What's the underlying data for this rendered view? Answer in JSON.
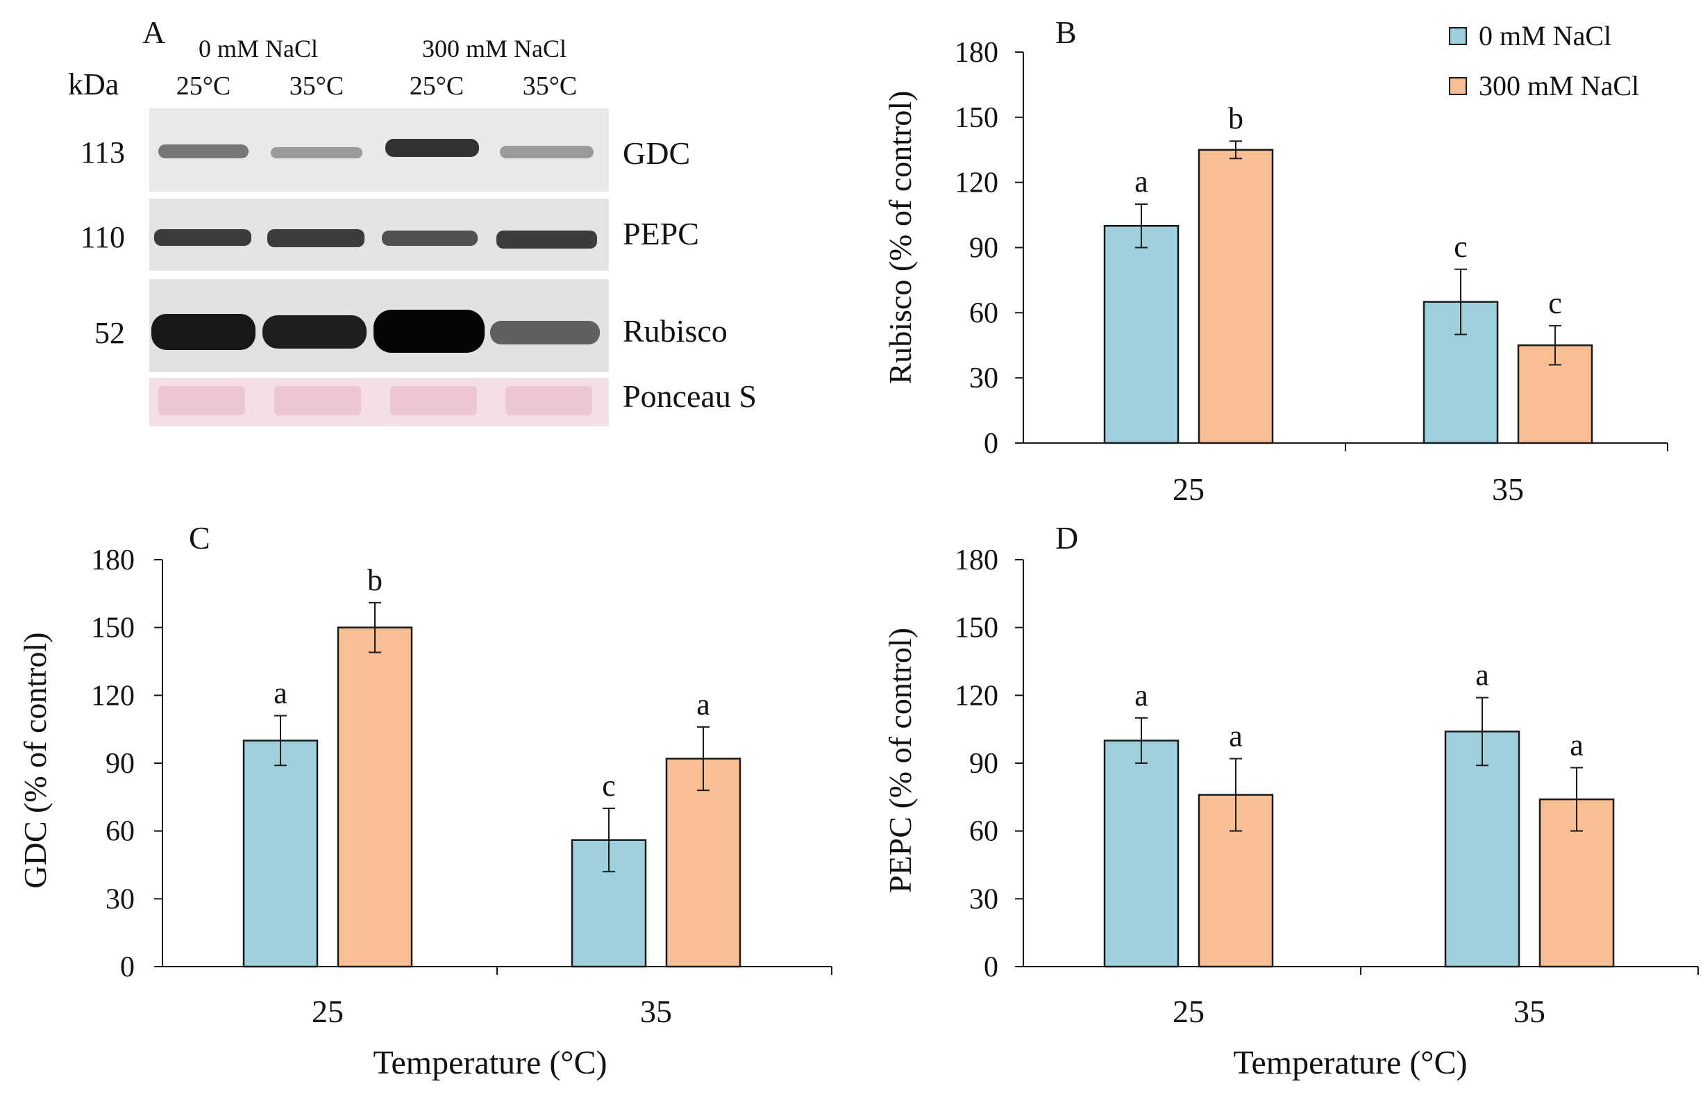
{
  "colors": {
    "c0": "#9ecfdd",
    "c300": "#f7bf93",
    "stroke": "#1a1a1a",
    "ponceau": "#f0c7d2"
  },
  "panelA": {
    "letter": "A",
    "groups": [
      "0 mM NaCl",
      "300 mM NaCl"
    ],
    "kda_label": "kDa",
    "lanes": [
      "25°C",
      "35°C",
      "25°C",
      "35°C"
    ],
    "rows": [
      {
        "kda": "113",
        "name": "GDC",
        "intensity": [
          0.55,
          0.4,
          0.85,
          0.4
        ]
      },
      {
        "kda": "110",
        "name": "PEPC",
        "intensity": [
          0.8,
          0.8,
          0.72,
          0.8
        ]
      },
      {
        "kda": "52",
        "name": "Rubisco",
        "intensity": [
          0.95,
          0.92,
          1.0,
          0.65
        ]
      },
      {
        "kda": "",
        "name": "Ponceau S",
        "intensity": [
          0.3,
          0.3,
          0.3,
          0.3
        ]
      }
    ]
  },
  "chart_data": [
    {
      "panel": "B",
      "type": "bar",
      "categories": [
        "25",
        "35"
      ],
      "ylabel": "Rubisco (% of control)",
      "xlabel": "",
      "ylim": [
        0,
        180
      ],
      "yticks": [
        "0",
        "30",
        "60",
        "90",
        "120",
        "150",
        "180"
      ],
      "legend": {
        "position": "top-right"
      },
      "series": [
        {
          "name": "0 mM NaCl",
          "values": [
            100,
            65
          ],
          "errors": [
            10,
            15
          ],
          "letters": [
            "a",
            "c"
          ]
        },
        {
          "name": "300 mM NaCl",
          "values": [
            135,
            45
          ],
          "errors": [
            4,
            9
          ],
          "letters": [
            "b",
            "c"
          ]
        }
      ]
    },
    {
      "panel": "C",
      "type": "bar",
      "categories": [
        "25",
        "35"
      ],
      "ylabel": "GDC (% of control)",
      "xlabel": "Temperature (°C)",
      "ylim": [
        0,
        180
      ],
      "yticks": [
        "0",
        "30",
        "60",
        "90",
        "120",
        "150",
        "180"
      ],
      "series": [
        {
          "name": "0 mM NaCl",
          "values": [
            100,
            56
          ],
          "errors": [
            11,
            14
          ],
          "letters": [
            "a",
            "c"
          ]
        },
        {
          "name": "300 mM NaCl",
          "values": [
            150,
            92
          ],
          "errors": [
            11,
            14
          ],
          "letters": [
            "b",
            "a"
          ]
        }
      ]
    },
    {
      "panel": "D",
      "type": "bar",
      "categories": [
        "25",
        "35"
      ],
      "ylabel": "PEPC (% of control)",
      "xlabel": "Temperature (°C)",
      "ylim": [
        0,
        180
      ],
      "yticks": [
        "0",
        "30",
        "60",
        "90",
        "120",
        "150",
        "180"
      ],
      "series": [
        {
          "name": "0 mM NaCl",
          "values": [
            100,
            104
          ],
          "errors": [
            10,
            15
          ],
          "letters": [
            "a",
            "a"
          ]
        },
        {
          "name": "300 mM NaCl",
          "values": [
            76,
            74
          ],
          "errors": [
            16,
            14
          ],
          "letters": [
            "a",
            "a"
          ]
        }
      ]
    }
  ]
}
